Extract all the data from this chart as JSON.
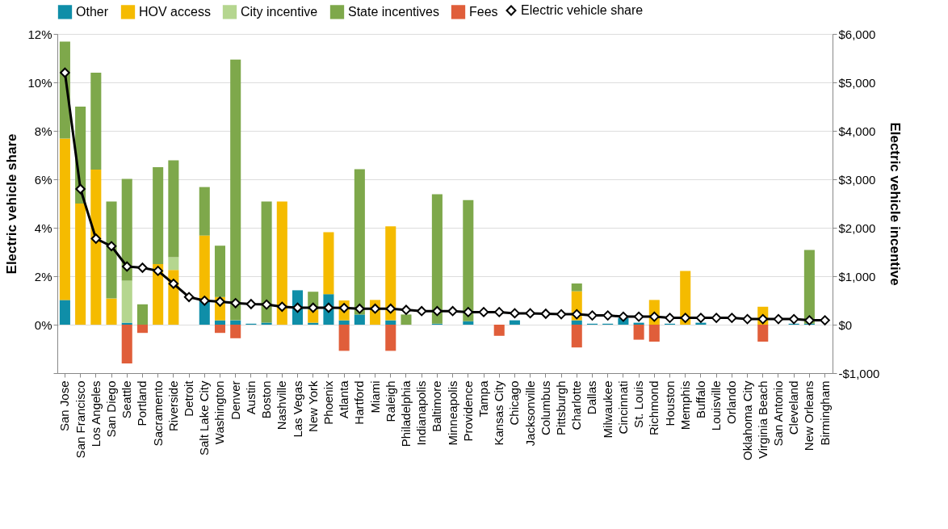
{
  "chart_data": {
    "type": "bar",
    "stacked": true,
    "grid": "y",
    "legend": "top",
    "marker": "diamond",
    "line_style": "solid",
    "ylabel": "Electric vehicle share",
    "y2label": "Electric vehicle incentive",
    "ylim": [
      -2,
      12
    ],
    "yticks": [
      {
        "value": -2,
        "label": null
      },
      {
        "value": 0,
        "label": "0%"
      },
      {
        "value": 2,
        "label": "2%"
      },
      {
        "value": 4,
        "label": "4%"
      },
      {
        "value": 6,
        "label": "6%"
      },
      {
        "value": 8,
        "label": "8%"
      },
      {
        "value": 10,
        "label": "10%"
      },
      {
        "value": 12,
        "label": "12%"
      }
    ],
    "y2lim": [
      -1000,
      6000
    ],
    "y2ticks": [
      {
        "value": -1000,
        "label": "-$1,000"
      },
      {
        "value": 0,
        "label": "$0"
      },
      {
        "value": 1000,
        "label": "$1,000"
      },
      {
        "value": 2000,
        "label": "$2,000"
      },
      {
        "value": 3000,
        "label": "$3,000"
      },
      {
        "value": 4000,
        "label": "$4,000"
      },
      {
        "value": 5000,
        "label": "$5,000"
      },
      {
        "value": 6000,
        "label": "$6,000"
      }
    ],
    "categories": [
      "San Jose",
      "San Francisco",
      "Los Angeles",
      "San Diego",
      "Seattle",
      "Portland",
      "Sacramento",
      "Riverside",
      "Detroit",
      "Salt Lake City",
      "Washington",
      "Denver",
      "Austin",
      "Boston",
      "Nashville",
      "Las Vegas",
      "New York",
      "Phoenix",
      "Atlanta",
      "Hartford",
      "Miami",
      "Raleigh",
      "Philadelphia",
      "Indianapolis",
      "Baltimore",
      "Minneapolis",
      "Providence",
      "Tampa",
      "Kansas City",
      "Chicago",
      "Jacksonville",
      "Columbus",
      "Pittsburgh",
      "Charlotte",
      "Dallas",
      "Milwaukee",
      "Cincinnati",
      "St. Louis",
      "Richmond",
      "Houston",
      "Memphis",
      "Buffalo",
      "Louisville",
      "Orlando",
      "Oklahoma City",
      "Virginia Beach",
      "San Antonio",
      "Cleveland",
      "New Orleans",
      "Birmingham"
    ],
    "series": [
      {
        "name": "Other",
        "color": "#0f8ea8",
        "axis": "y2",
        "values": [
          510,
          null,
          null,
          null,
          40,
          null,
          null,
          null,
          null,
          490,
          90,
          90,
          20,
          40,
          null,
          710,
          40,
          630,
          90,
          210,
          null,
          90,
          null,
          null,
          20,
          null,
          70,
          null,
          null,
          90,
          null,
          null,
          null,
          90,
          20,
          20,
          140,
          40,
          null,
          20,
          null,
          40,
          null,
          null,
          null,
          null,
          null,
          20,
          20,
          null
        ]
      },
      {
        "name": "HOV access",
        "color": "#f5bb00",
        "axis": "y2",
        "values": [
          3330,
          2500,
          3200,
          540,
          null,
          null,
          1250,
          1130,
          null,
          1350,
          480,
          null,
          null,
          null,
          2540,
          null,
          270,
          1280,
          410,
          null,
          510,
          1940,
          null,
          null,
          null,
          null,
          null,
          null,
          null,
          null,
          null,
          null,
          null,
          600,
          null,
          null,
          null,
          null,
          510,
          null,
          1110,
          null,
          null,
          null,
          null,
          370,
          null,
          null,
          null,
          null
        ]
      },
      {
        "name": "City incentive",
        "color": "#b5d68f",
        "axis": "y2",
        "values": [
          null,
          null,
          null,
          null,
          870,
          null,
          null,
          260,
          null,
          null,
          null,
          null,
          null,
          null,
          null,
          null,
          null,
          null,
          null,
          null,
          null,
          null,
          null,
          null,
          null,
          null,
          null,
          null,
          null,
          null,
          null,
          null,
          null,
          null,
          null,
          null,
          null,
          null,
          null,
          null,
          null,
          null,
          null,
          null,
          null,
          null,
          null,
          null,
          null,
          null
        ]
      },
      {
        "name": "State incentives",
        "color": "#7ea84b",
        "axis": "y2",
        "values": [
          2000,
          2000,
          2000,
          2000,
          2100,
          420,
          2000,
          2000,
          null,
          1000,
          1060,
          5380,
          null,
          2500,
          null,
          null,
          370,
          null,
          null,
          3000,
          null,
          null,
          210,
          null,
          2670,
          null,
          2500,
          null,
          null,
          null,
          null,
          null,
          null,
          160,
          null,
          null,
          null,
          null,
          null,
          null,
          null,
          null,
          null,
          null,
          null,
          null,
          null,
          null,
          1520,
          null
        ]
      },
      {
        "name": "Fees",
        "color": "#e05e3a",
        "axis": "y2",
        "values": [
          null,
          null,
          null,
          null,
          -800,
          -170,
          null,
          null,
          null,
          null,
          -170,
          -280,
          null,
          null,
          null,
          null,
          null,
          null,
          -540,
          null,
          null,
          -540,
          null,
          null,
          null,
          null,
          null,
          null,
          -230,
          null,
          null,
          null,
          null,
          -470,
          null,
          null,
          null,
          -310,
          -350,
          null,
          null,
          null,
          null,
          null,
          null,
          -350,
          null,
          null,
          null,
          null
        ]
      },
      {
        "name": "Electric vehicle share",
        "type": "line",
        "color": "#000000",
        "values": [
          10.4,
          5.6,
          3.55,
          3.24,
          2.4,
          2.35,
          2.22,
          1.69,
          1.14,
          0.99,
          0.95,
          0.89,
          0.85,
          0.83,
          0.74,
          0.7,
          0.7,
          0.7,
          0.69,
          0.66,
          0.66,
          0.66,
          0.61,
          0.56,
          0.56,
          0.56,
          0.52,
          0.52,
          0.52,
          0.47,
          0.47,
          0.45,
          0.43,
          0.43,
          0.38,
          0.38,
          0.33,
          0.33,
          0.33,
          0.28,
          0.28,
          0.28,
          0.28,
          0.28,
          0.23,
          0.23,
          0.23,
          0.23,
          0.18,
          0.18
        ]
      }
    ]
  }
}
